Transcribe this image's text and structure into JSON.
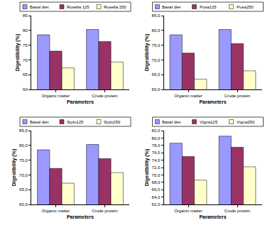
{
  "chart_data": [
    {
      "type": "bar",
      "x_label": "Parameters",
      "y_label": "Digestibility (%)",
      "categories": [
        "Organic matter",
        "Crude protein"
      ],
      "series": [
        {
          "name": "Basal diet",
          "color": "#9999ff",
          "values": [
            78.5,
            80.3
          ]
        },
        {
          "name": "Rosella 125",
          "color": "#993366",
          "values": [
            73.0,
            76.2
          ]
        },
        {
          "name": "Rosella 250",
          "color": "#ffffcc",
          "values": [
            67.3,
            69.3
          ]
        }
      ],
      "ylim": [
        60,
        85
      ],
      "yticks": [
        60,
        65,
        70,
        75,
        80,
        85
      ],
      "grid": false,
      "legend": "top"
    },
    {
      "type": "bar",
      "x_label": "Parameters",
      "y_label": "Digestibility (%)",
      "categories": [
        "Organic matter",
        "Crude protein"
      ],
      "series": [
        {
          "name": "Basal diet",
          "color": "#9999ff",
          "values": [
            78.5,
            80.3
          ]
        },
        {
          "name": "Pusa125",
          "color": "#993366",
          "values": [
            72.3,
            75.5
          ]
        },
        {
          "name": "Pusa250",
          "color": "#ffffcc",
          "values": [
            63.5,
            66.3
          ]
        }
      ],
      "ylim": [
        60,
        85
      ],
      "yticks": [
        {
          "value": 60,
          "label": "60,0"
        },
        {
          "value": 65,
          "label": "65,0"
        },
        {
          "value": 70,
          "label": "70,0"
        },
        {
          "value": 75,
          "label": "75,0"
        },
        {
          "value": 80,
          "label": "80,0"
        },
        {
          "value": 85,
          "label": "85,0"
        }
      ],
      "grid": false,
      "legend": "top"
    },
    {
      "type": "bar",
      "x_label": "Parameters",
      "y_label": "Digestibility (%)",
      "categories": [
        "Organic matter",
        "Crude protein"
      ],
      "series": [
        {
          "name": "Basal diet",
          "color": "#9999ff",
          "values": [
            78.5,
            80.3
          ]
        },
        {
          "name": "Stylo125",
          "color": "#993366",
          "values": [
            72.2,
            75.5
          ]
        },
        {
          "name": "Stylo250",
          "color": "#ffffcc",
          "values": [
            67.2,
            70.8
          ]
        }
      ],
      "ylim": [
        60,
        85
      ],
      "yticks": [
        {
          "value": 60,
          "label": "60,0"
        },
        {
          "value": 65,
          "label": "65,0"
        },
        {
          "value": 70,
          "label": "70,0"
        },
        {
          "value": 75,
          "label": "75,0"
        },
        {
          "value": 80,
          "label": "80,0"
        },
        {
          "value": 85,
          "label": "85,0"
        }
      ],
      "grid": false,
      "legend": "top"
    },
    {
      "type": "bar",
      "x_label": "Parameters",
      "y_label": "Digestibility (%)",
      "categories": [
        "Organic matter",
        "Crude protein"
      ],
      "series": [
        {
          "name": "Basal diet",
          "color": "#9999ff",
          "values": [
            78.6,
            80.5
          ]
        },
        {
          "name": "Vigna125",
          "color": "#993366",
          "values": [
            75.0,
            77.5
          ]
        },
        {
          "name": "Vigna250",
          "color": "#ffffcc",
          "values": [
            68.6,
            72.2
          ]
        }
      ],
      "ylim": [
        62,
        82
      ],
      "yticks": [
        {
          "value": 62,
          "label": "62,0"
        },
        {
          "value": 64,
          "label": "64,0"
        },
        {
          "value": 66,
          "label": "66,0"
        },
        {
          "value": 68,
          "label": "68,0"
        },
        {
          "value": 70,
          "label": "70,0"
        },
        {
          "value": 72,
          "label": "72,0"
        },
        {
          "value": 74,
          "label": "74,0"
        },
        {
          "value": 76,
          "label": "76,0"
        },
        {
          "value": 78,
          "label": "78,0"
        },
        {
          "value": 80,
          "label": "80,0"
        },
        {
          "value": 82,
          "label": "82,0"
        }
      ],
      "grid": false,
      "legend": "top"
    }
  ]
}
